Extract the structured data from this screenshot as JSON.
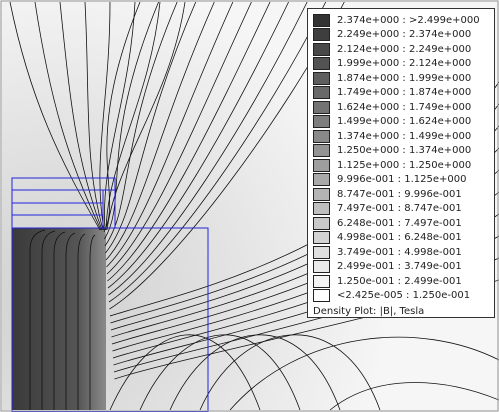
{
  "legend": {
    "entries": [
      "2.374e+000 : >2.499e+000",
      "2.249e+000 : 2.374e+000",
      "2.124e+000 : 2.249e+000",
      "1.999e+000 : 2.124e+000",
      "1.874e+000 : 1.999e+000",
      "1.749e+000 : 1.874e+000",
      "1.624e+000 : 1.749e+000",
      "1.499e+000 : 1.624e+000",
      "1.374e+000 : 1.499e+000",
      "1.250e+000 : 1.374e+000",
      "1.125e+000 : 1.250e+000",
      "9.996e-001 : 1.125e+000",
      "8.747e-001 : 9.996e-001",
      "7.497e-001 : 8.747e-001",
      "6.248e-001 : 7.497e-001",
      "4.998e-001 : 6.248e-001",
      "3.749e-001 : 4.998e-001",
      "2.499e-001 : 3.749e-001",
      "1.250e-001 : 2.499e-001",
      "<2.425e-005 : 1.250e-001"
    ],
    "title": "Density Plot: |B|, Tesla"
  }
}
